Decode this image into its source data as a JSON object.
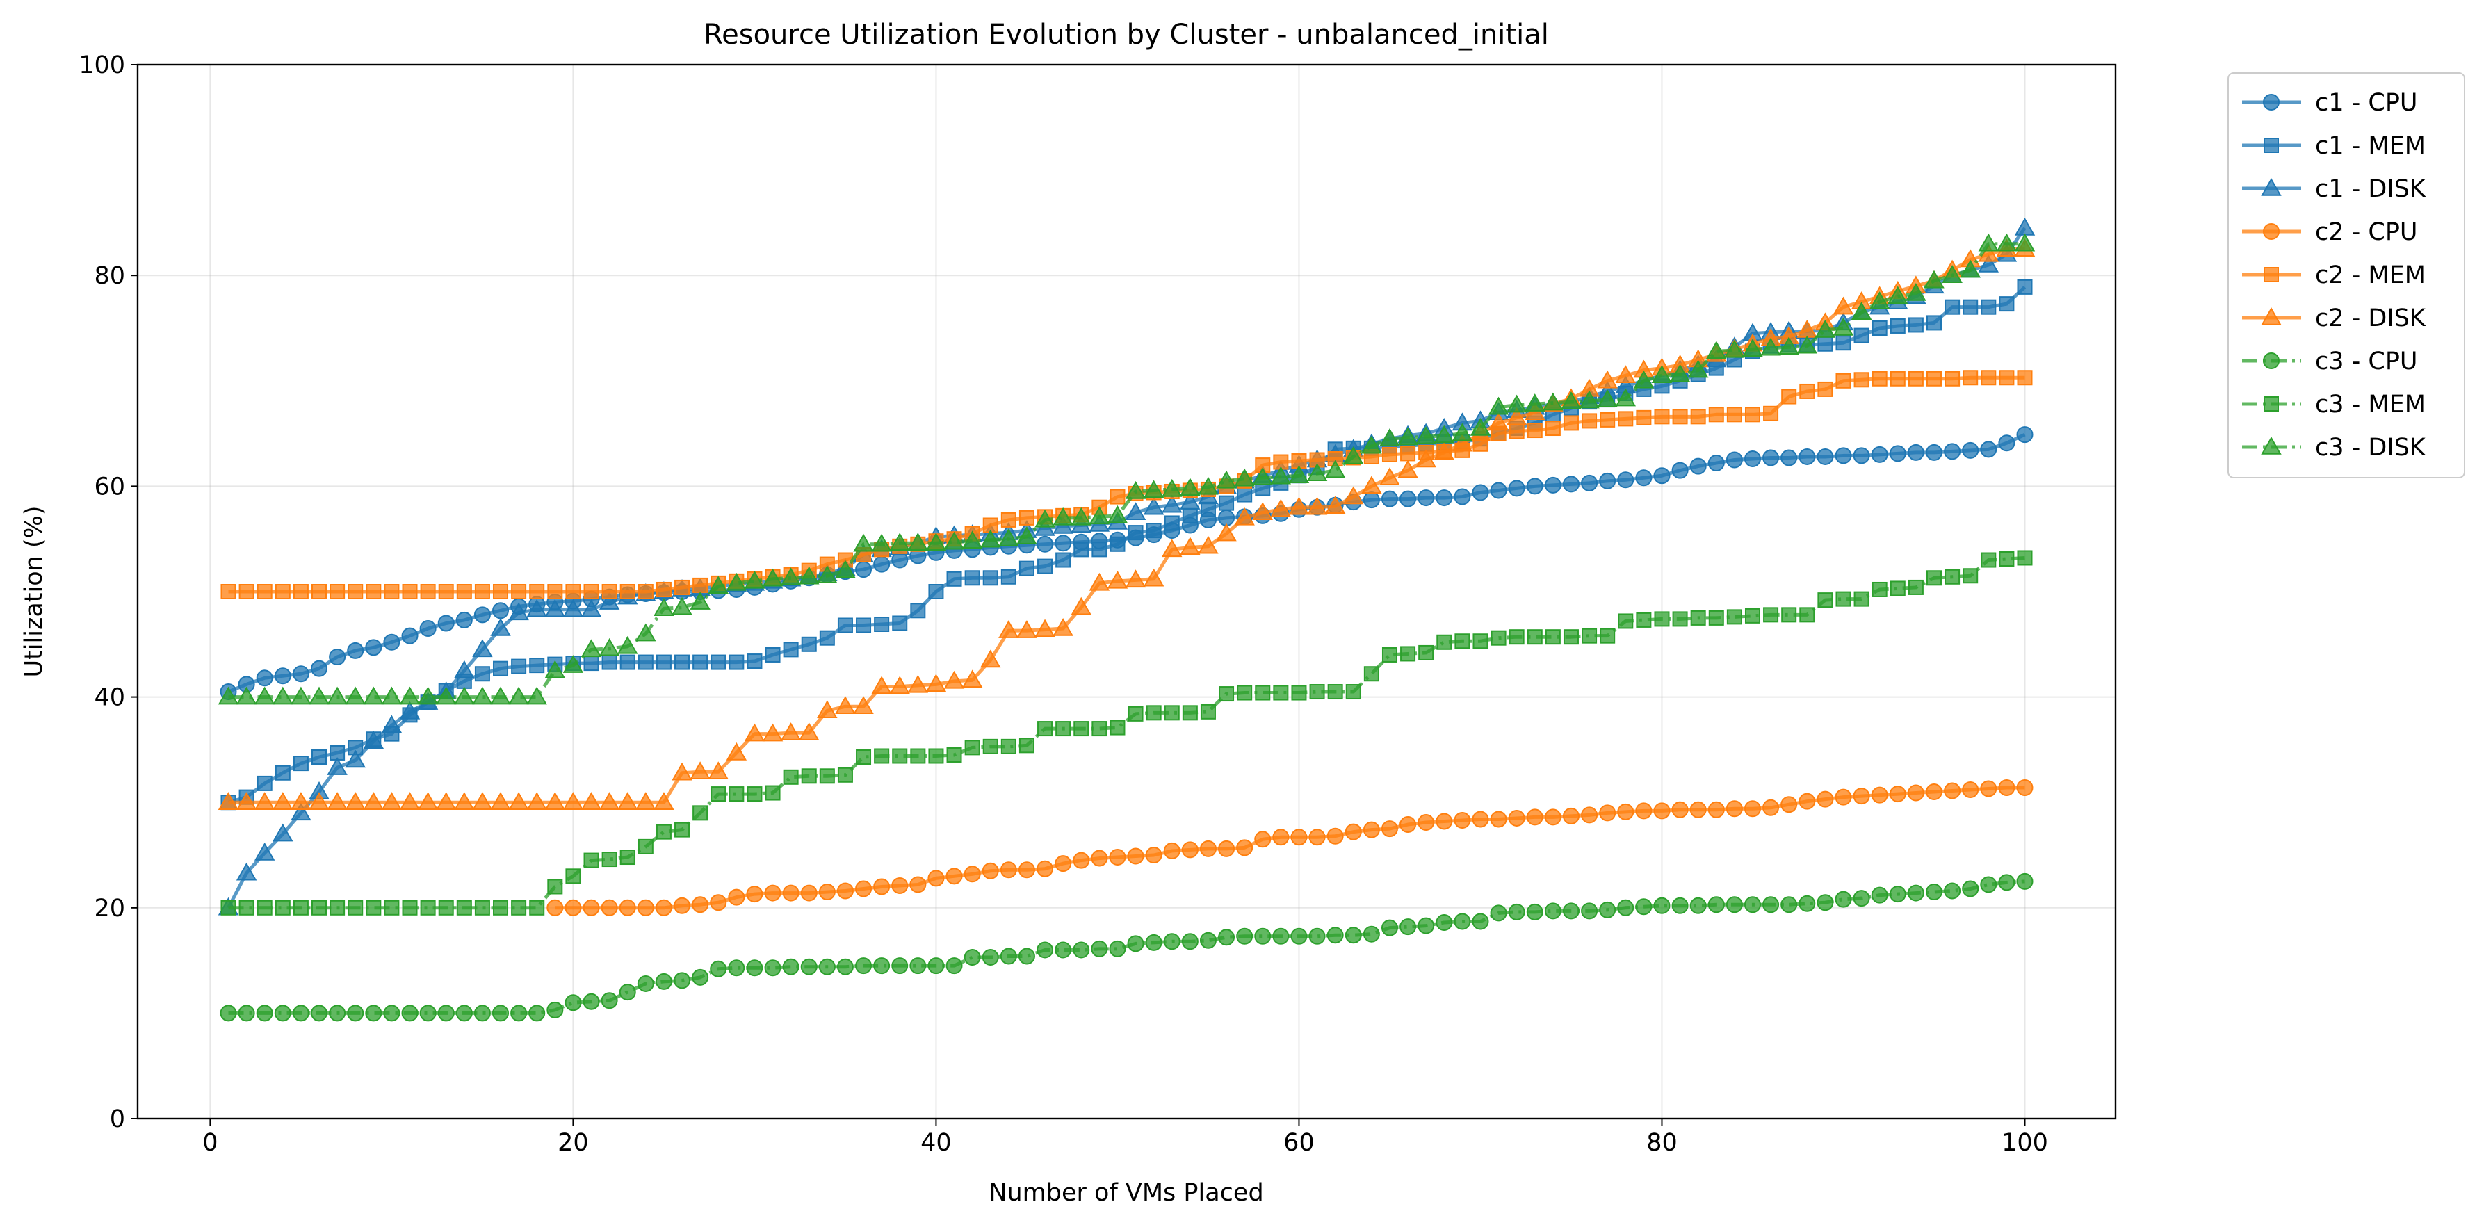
{
  "chart_data": {
    "type": "line",
    "title": "Resource Utilization Evolution by Cluster - unbalanced_initial",
    "xlabel": "Number of VMs Placed",
    "ylabel": "Utilization (%)",
    "xlim": [
      -4,
      105
    ],
    "ylim": [
      0,
      100
    ],
    "x_ticks": [
      0,
      20,
      40,
      60,
      80,
      100
    ],
    "y_ticks": [
      0,
      20,
      40,
      60,
      80,
      100
    ],
    "grid": true,
    "legend_position": "outside upper right",
    "x": [
      1,
      2,
      3,
      4,
      5,
      6,
      7,
      8,
      9,
      10,
      11,
      12,
      13,
      14,
      15,
      16,
      17,
      18,
      19,
      20,
      21,
      22,
      23,
      24,
      25,
      26,
      27,
      28,
      29,
      30,
      31,
      32,
      33,
      34,
      35,
      36,
      37,
      38,
      39,
      40,
      41,
      42,
      43,
      44,
      45,
      46,
      47,
      48,
      49,
      50,
      51,
      52,
      53,
      54,
      55,
      56,
      57,
      58,
      59,
      60,
      61,
      62,
      63,
      64,
      65,
      66,
      67,
      68,
      69,
      70,
      71,
      72,
      73,
      74,
      75,
      76,
      77,
      78,
      79,
      80,
      81,
      82,
      83,
      84,
      85,
      86,
      87,
      88,
      89,
      90,
      91,
      92,
      93,
      94,
      95,
      96,
      97,
      98,
      99,
      100
    ],
    "series": [
      {
        "name": "c1 - CPU",
        "color": "#1f77b4",
        "marker": "circle",
        "linestyle": "solid",
        "values": [
          40.5,
          41.2,
          41.8,
          42.0,
          42.2,
          42.7,
          43.8,
          44.4,
          44.7,
          45.2,
          45.8,
          46.5,
          47.0,
          47.3,
          47.8,
          48.2,
          48.6,
          48.8,
          49.0,
          49.1,
          49.3,
          49.5,
          49.7,
          49.8,
          49.9,
          50.0,
          50.0,
          50.1,
          50.2,
          50.4,
          50.7,
          51.0,
          51.3,
          51.6,
          51.9,
          52.1,
          52.6,
          53.0,
          53.4,
          53.7,
          53.9,
          54.0,
          54.2,
          54.3,
          54.4,
          54.5,
          54.6,
          54.7,
          54.8,
          54.9,
          55.1,
          55.4,
          55.8,
          56.3,
          56.8,
          57.0,
          57.1,
          57.2,
          57.4,
          57.8,
          58.0,
          58.2,
          58.5,
          58.7,
          58.8,
          58.8,
          58.9,
          58.9,
          59.0,
          59.4,
          59.6,
          59.8,
          60.0,
          60.1,
          60.2,
          60.3,
          60.5,
          60.6,
          60.8,
          61.0,
          61.5,
          61.9,
          62.2,
          62.5,
          62.6,
          62.7,
          62.7,
          62.8,
          62.8,
          62.9,
          62.9,
          63.0,
          63.1,
          63.2,
          63.2,
          63.3,
          63.4,
          63.5,
          64.1,
          64.9
        ]
      },
      {
        "name": "c1 - MEM",
        "color": "#1f77b4",
        "marker": "square",
        "linestyle": "solid",
        "values": [
          30.0,
          30.5,
          31.8,
          32.8,
          33.7,
          34.3,
          34.7,
          35.2,
          36.0,
          36.5,
          38.3,
          39.5,
          40.6,
          41.5,
          42.2,
          42.7,
          42.9,
          43.0,
          43.1,
          43.2,
          43.2,
          43.3,
          43.3,
          43.3,
          43.3,
          43.3,
          43.3,
          43.3,
          43.3,
          43.4,
          44.0,
          44.5,
          45.0,
          45.6,
          46.8,
          46.8,
          46.9,
          47.0,
          48.2,
          50.0,
          51.2,
          51.3,
          51.3,
          51.4,
          52.2,
          52.4,
          53.0,
          54.0,
          54.0,
          54.5,
          55.6,
          55.8,
          56.5,
          57.2,
          57.8,
          58.4,
          59.2,
          59.8,
          60.3,
          61.0,
          61.8,
          63.5,
          63.6,
          63.6,
          63.8,
          63.8,
          64.0,
          64.1,
          64.2,
          64.5,
          65.0,
          65.5,
          66.0,
          66.8,
          67.4,
          68.0,
          68.2,
          68.8,
          69.2,
          69.5,
          70.0,
          70.6,
          71.2,
          72.0,
          72.8,
          73.3,
          73.4,
          73.4,
          73.5,
          73.6,
          74.3,
          75.0,
          75.2,
          75.3,
          75.5,
          77.0,
          77.0,
          77.0,
          77.3,
          78.9
        ]
      },
      {
        "name": "c1 - DISK",
        "color": "#1f77b4",
        "marker": "triangle",
        "linestyle": "solid",
        "values": [
          20.0,
          23.3,
          25.2,
          27.0,
          29.0,
          31.0,
          33.3,
          34.0,
          35.8,
          37.3,
          38.6,
          39.5,
          40.5,
          42.5,
          44.5,
          46.5,
          48.0,
          48.3,
          48.3,
          48.3,
          48.3,
          49.0,
          49.5,
          49.8,
          50.0,
          50.2,
          50.3,
          50.5,
          50.7,
          50.8,
          51.0,
          51.2,
          51.4,
          51.7,
          52.2,
          53.5,
          54.0,
          54.2,
          54.6,
          55.2,
          55.3,
          55.4,
          55.5,
          55.6,
          55.8,
          56.0,
          56.2,
          56.3,
          56.4,
          56.6,
          57.5,
          58.0,
          58.2,
          58.5,
          59.0,
          60.0,
          60.5,
          61.0,
          61.5,
          62.0,
          62.5,
          63.0,
          63.5,
          64.0,
          64.5,
          64.8,
          65.0,
          65.5,
          66.0,
          66.2,
          67.0,
          67.2,
          67.5,
          67.8,
          68.0,
          68.5,
          69.0,
          69.5,
          70.0,
          70.5,
          71.0,
          71.5,
          72.0,
          73.2,
          74.5,
          74.6,
          74.7,
          74.7,
          74.8,
          75.5,
          76.5,
          77.0,
          77.5,
          78.0,
          79.0,
          80.0,
          80.5,
          81.0,
          82.0,
          84.5
        ]
      },
      {
        "name": "c2 - CPU",
        "color": "#ff7f0e",
        "marker": "circle",
        "linestyle": "solid",
        "values": [
          null,
          null,
          null,
          null,
          null,
          null,
          null,
          null,
          null,
          null,
          null,
          null,
          null,
          null,
          null,
          null,
          null,
          null,
          20.0,
          20.0,
          20.0,
          20.0,
          20.0,
          20.0,
          20.0,
          20.2,
          20.3,
          20.5,
          21.0,
          21.3,
          21.4,
          21.4,
          21.4,
          21.5,
          21.6,
          21.8,
          22.0,
          22.1,
          22.2,
          22.8,
          23.0,
          23.2,
          23.5,
          23.6,
          23.6,
          23.7,
          24.2,
          24.5,
          24.7,
          24.8,
          24.9,
          25.0,
          25.4,
          25.5,
          25.6,
          25.6,
          25.7,
          26.5,
          26.7,
          26.7,
          26.7,
          26.8,
          27.2,
          27.4,
          27.5,
          27.9,
          28.1,
          28.2,
          28.3,
          28.4,
          28.4,
          28.5,
          28.6,
          28.6,
          28.7,
          28.8,
          29.0,
          29.1,
          29.2,
          29.2,
          29.3,
          29.3,
          29.3,
          29.4,
          29.4,
          29.5,
          29.8,
          30.1,
          30.3,
          30.5,
          30.6,
          30.7,
          30.8,
          30.9,
          31.0,
          31.1,
          31.2,
          31.3,
          31.4,
          31.4
        ]
      },
      {
        "name": "c2 - MEM",
        "color": "#ff7f0e",
        "marker": "square",
        "linestyle": "solid",
        "values": [
          50.0,
          50.0,
          50.0,
          50.0,
          50.0,
          50.0,
          50.0,
          50.0,
          50.0,
          50.0,
          50.0,
          50.0,
          50.0,
          50.0,
          50.0,
          50.0,
          50.0,
          50.0,
          50.0,
          50.0,
          50.0,
          50.0,
          50.0,
          50.0,
          50.2,
          50.4,
          50.6,
          50.8,
          51.0,
          51.2,
          51.4,
          51.6,
          52.0,
          52.6,
          53.0,
          53.5,
          54.0,
          54.3,
          54.5,
          54.8,
          55.0,
          55.5,
          56.3,
          56.8,
          57.0,
          57.1,
          57.2,
          57.3,
          58.0,
          59.0,
          59.3,
          59.4,
          59.5,
          59.6,
          59.7,
          60.0,
          60.5,
          62.0,
          62.3,
          62.4,
          62.5,
          62.6,
          62.7,
          62.8,
          63.0,
          63.1,
          63.2,
          63.3,
          63.4,
          64.0,
          65.0,
          65.2,
          65.3,
          65.5,
          66.0,
          66.2,
          66.3,
          66.4,
          66.5,
          66.6,
          66.6,
          66.6,
          66.8,
          66.8,
          66.8,
          66.9,
          68.5,
          69.0,
          69.2,
          70.0,
          70.1,
          70.2,
          70.2,
          70.2,
          70.2,
          70.2,
          70.3,
          70.3,
          70.3,
          70.3
        ]
      },
      {
        "name": "c2 - DISK",
        "color": "#ff7f0e",
        "marker": "triangle",
        "linestyle": "solid",
        "values": [
          30.0,
          30.0,
          30.0,
          30.0,
          30.0,
          30.0,
          30.0,
          30.0,
          30.0,
          30.0,
          30.0,
          30.0,
          30.0,
          30.0,
          30.0,
          30.0,
          30.0,
          30.0,
          30.0,
          30.0,
          30.0,
          30.0,
          30.0,
          30.0,
          30.0,
          32.8,
          32.9,
          32.9,
          34.7,
          36.5,
          36.5,
          36.6,
          36.6,
          38.7,
          39.1,
          39.1,
          41.0,
          41.0,
          41.1,
          41.2,
          41.5,
          41.6,
          43.5,
          46.3,
          46.3,
          46.4,
          46.5,
          48.5,
          50.8,
          51.0,
          51.1,
          51.2,
          54.0,
          54.2,
          54.3,
          55.5,
          57.0,
          57.5,
          57.8,
          58.0,
          58.0,
          58.1,
          59.0,
          60.0,
          60.8,
          61.5,
          62.5,
          63.2,
          64.0,
          65.0,
          66.0,
          66.5,
          67.0,
          67.8,
          68.3,
          69.2,
          70.0,
          70.5,
          71.0,
          71.2,
          71.5,
          72.0,
          72.5,
          73.0,
          73.5,
          74.0,
          74.2,
          74.8,
          75.5,
          77.0,
          77.5,
          78.0,
          78.5,
          79.0,
          79.5,
          80.5,
          81.5,
          82.0,
          82.5,
          82.5
        ]
      },
      {
        "name": "c3 - CPU",
        "color": "#2ca02c",
        "marker": "circle",
        "linestyle": "dashdot",
        "values": [
          10.0,
          10.0,
          10.0,
          10.0,
          10.0,
          10.0,
          10.0,
          10.0,
          10.0,
          10.0,
          10.0,
          10.0,
          10.0,
          10.0,
          10.0,
          10.0,
          10.0,
          10.0,
          10.3,
          11.0,
          11.1,
          11.2,
          12.0,
          12.8,
          13.0,
          13.1,
          13.4,
          14.2,
          14.3,
          14.3,
          14.3,
          14.4,
          14.4,
          14.4,
          14.4,
          14.5,
          14.5,
          14.5,
          14.5,
          14.5,
          14.5,
          15.3,
          15.3,
          15.4,
          15.4,
          16.0,
          16.0,
          16.0,
          16.1,
          16.1,
          16.6,
          16.7,
          16.8,
          16.8,
          16.9,
          17.2,
          17.3,
          17.3,
          17.3,
          17.3,
          17.3,
          17.4,
          17.4,
          17.5,
          18.1,
          18.2,
          18.3,
          18.6,
          18.7,
          18.7,
          19.5,
          19.6,
          19.6,
          19.7,
          19.7,
          19.7,
          19.8,
          20.0,
          20.1,
          20.2,
          20.2,
          20.2,
          20.3,
          20.3,
          20.3,
          20.3,
          20.3,
          20.4,
          20.5,
          20.8,
          20.9,
          21.2,
          21.3,
          21.4,
          21.5,
          21.6,
          21.8,
          22.2,
          22.4,
          22.5
        ]
      },
      {
        "name": "c3 - MEM",
        "color": "#2ca02c",
        "marker": "square",
        "linestyle": "dashdot",
        "values": [
          20.0,
          20.0,
          20.0,
          20.0,
          20.0,
          20.0,
          20.0,
          20.0,
          20.0,
          20.0,
          20.0,
          20.0,
          20.0,
          20.0,
          20.0,
          20.0,
          20.0,
          20.0,
          22.0,
          23.0,
          24.5,
          24.6,
          24.8,
          25.8,
          27.2,
          27.4,
          29.0,
          30.8,
          30.8,
          30.8,
          30.9,
          32.4,
          32.5,
          32.5,
          32.6,
          34.3,
          34.4,
          34.4,
          34.4,
          34.4,
          34.5,
          35.2,
          35.3,
          35.3,
          35.4,
          37.0,
          37.0,
          37.0,
          37.0,
          37.1,
          38.4,
          38.5,
          38.5,
          38.5,
          38.6,
          40.3,
          40.4,
          40.4,
          40.4,
          40.4,
          40.5,
          40.5,
          40.5,
          42.2,
          44.0,
          44.1,
          44.2,
          45.2,
          45.3,
          45.3,
          45.6,
          45.7,
          45.7,
          45.7,
          45.7,
          45.8,
          45.8,
          47.2,
          47.3,
          47.4,
          47.4,
          47.5,
          47.5,
          47.6,
          47.7,
          47.8,
          47.8,
          47.8,
          49.2,
          49.3,
          49.3,
          50.2,
          50.3,
          50.4,
          51.3,
          51.4,
          51.5,
          53.0,
          53.1,
          53.2
        ]
      },
      {
        "name": "c3 - DISK",
        "color": "#2ca02c",
        "marker": "triangle",
        "linestyle": "dashdot",
        "values": [
          40.0,
          40.0,
          40.0,
          40.0,
          40.0,
          40.0,
          40.0,
          40.0,
          40.0,
          40.0,
          40.0,
          40.0,
          40.0,
          40.0,
          40.0,
          40.0,
          40.0,
          40.0,
          42.5,
          43.0,
          44.5,
          44.6,
          44.8,
          46.0,
          48.4,
          48.5,
          49.0,
          50.5,
          50.8,
          51.0,
          51.2,
          51.3,
          51.4,
          51.5,
          52.0,
          54.5,
          54.5,
          54.6,
          54.6,
          54.6,
          54.7,
          54.8,
          54.9,
          55.0,
          55.2,
          56.8,
          57.0,
          57.0,
          57.1,
          57.2,
          59.5,
          59.6,
          59.7,
          59.8,
          59.9,
          60.5,
          60.7,
          60.8,
          60.9,
          61.0,
          61.2,
          61.5,
          62.8,
          63.8,
          64.5,
          64.6,
          64.7,
          64.8,
          65.0,
          65.5,
          67.5,
          67.7,
          67.8,
          67.9,
          68.0,
          68.1,
          68.2,
          68.3,
          70.0,
          70.5,
          70.6,
          71.0,
          72.8,
          72.9,
          73.0,
          73.1,
          73.2,
          73.3,
          74.8,
          75.0,
          76.5,
          77.5,
          78.0,
          78.3,
          79.5,
          80.0,
          80.5,
          83.0,
          83.0,
          83.0
        ]
      }
    ]
  }
}
